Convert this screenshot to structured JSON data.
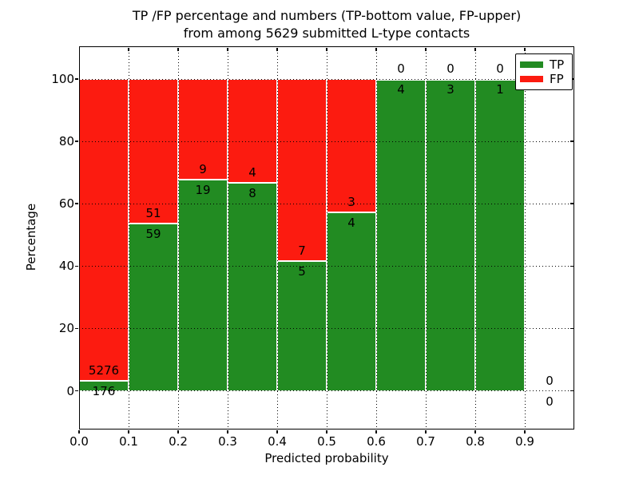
{
  "figure": {
    "title_line1": "TP /FP percentage and numbers (TP-bottom value, FP-upper)",
    "title_line2": "from among 5629 submitted L-type contacts"
  },
  "chart_data": {
    "type": "bar",
    "stacked": true,
    "normalized_to_percent": true,
    "title": "TP /FP percentage and numbers (TP-bottom value, FP-upper)\nfrom among 5629 submitted L-type contacts",
    "xlabel": "Predicted probability",
    "ylabel": "Percentage",
    "x_tick_labels": [
      "0.0",
      "0.1",
      "0.2",
      "0.3",
      "0.4",
      "0.5",
      "0.6",
      "0.7",
      "0.8",
      "0.9"
    ],
    "y_ticks": [
      0,
      20,
      40,
      60,
      80,
      100
    ],
    "xlim": [
      0.0,
      1.0
    ],
    "ylim": [
      -12.4,
      110.5
    ],
    "bin_width": 0.1,
    "bins": [
      "0.0-0.1",
      "0.1-0.2",
      "0.2-0.3",
      "0.3-0.4",
      "0.4-0.5",
      "0.5-0.6",
      "0.6-0.7",
      "0.7-0.8",
      "0.8-0.9",
      "0.9-1.0"
    ],
    "series": [
      {
        "name": "TP",
        "color": "#228b22",
        "values": [
          176,
          59,
          19,
          8,
          5,
          4,
          4,
          3,
          1,
          0
        ]
      },
      {
        "name": "FP",
        "color": "#fc1b10",
        "values": [
          5276,
          51,
          9,
          4,
          7,
          3,
          0,
          0,
          0,
          0
        ]
      }
    ],
    "tp_percent": [
      3.23,
      53.64,
      67.86,
      66.67,
      41.67,
      57.14,
      100.0,
      100.0,
      100.0,
      null
    ],
    "total_submitted": 5629,
    "legend": {
      "position": "upper right",
      "entries": [
        "TP",
        "FP"
      ]
    },
    "grid": true
  }
}
